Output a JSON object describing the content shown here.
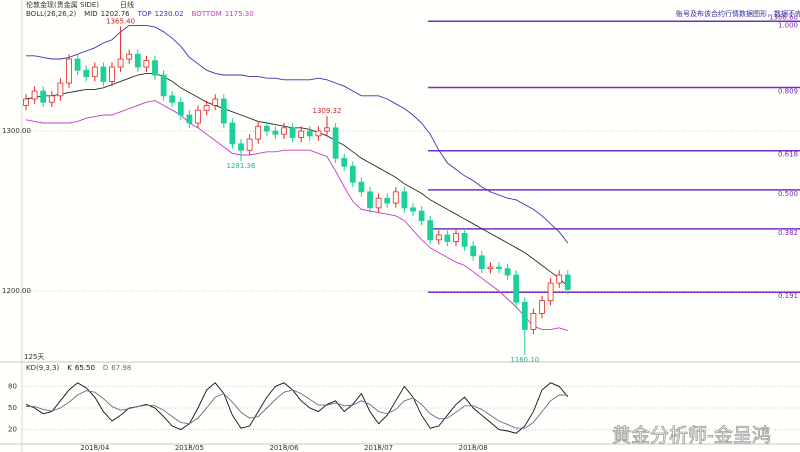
{
  "chart_data": [
    {
      "type": "candlestick",
      "title": "伦敦金现(贵金属 SIDE)",
      "period": "日线",
      "indicator": "BOLL(26,26,2)",
      "disclaimer": "账号及布该合约行情数据图形，数据不完整",
      "days_label": "125天",
      "watermark": "黄金分析师-金呈鸿",
      "categories": [
        null,
        null,
        null,
        null,
        null,
        null,
        null,
        null,
        "2018/04",
        null,
        null,
        null,
        null,
        null,
        null,
        null,
        null,
        null,
        null,
        "2018/05",
        null,
        null,
        null,
        null,
        null,
        null,
        null,
        null,
        null,
        null,
        "2018/06",
        null,
        null,
        null,
        null,
        null,
        null,
        null,
        null,
        null,
        null,
        "2018/07",
        null,
        null,
        null,
        null,
        null,
        null,
        null,
        null,
        null,
        null,
        "2018/08",
        null,
        null,
        null,
        null,
        null,
        null,
        null,
        null,
        null,
        null,
        null
      ],
      "candles": {
        "up_color": "#e02a2a",
        "down_color": "#1fcf9a",
        "open": [
          1316,
          1320,
          1325,
          1318,
          1322,
          1330,
          1345,
          1338,
          1334,
          1340,
          1331,
          1340,
          1345,
          1348,
          1340,
          1344,
          1335,
          1322,
          1318,
          1310,
          1305,
          1313,
          1316,
          1320,
          1305,
          1292,
          1288,
          1295,
          1303,
          1300,
          1298,
          1302,
          1296,
          1300,
          1297,
          1300,
          1302,
          1283,
          1278,
          1268,
          1262,
          1252,
          1258,
          1255,
          1262,
          1252,
          1250,
          1244,
          1232,
          1235,
          1231,
          1236,
          1228,
          1222,
          1214,
          1215,
          1214,
          1210,
          1193,
          1176,
          1186,
          1194,
          1205,
          1210
        ],
        "high": [
          1323,
          1328,
          1328,
          1325,
          1333,
          1348,
          1348,
          1341,
          1343,
          1343,
          1343,
          1365.4,
          1351,
          1351,
          1347,
          1347,
          1338,
          1325,
          1321,
          1313,
          1316,
          1319,
          1323,
          1323,
          1308,
          1295,
          1298,
          1306,
          1306,
          1303,
          1305,
          1305,
          1303,
          1303,
          1303,
          1309.32,
          1305,
          1286,
          1281,
          1271,
          1265,
          1261,
          1261,
          1265,
          1265,
          1255,
          1253,
          1247,
          1238,
          1238,
          1239,
          1239,
          1231,
          1225,
          1218,
          1218,
          1217,
          1213,
          1196,
          1189,
          1197,
          1208,
          1213,
          1213
        ],
        "low": [
          1313,
          1317,
          1315,
          1315,
          1319,
          1327,
          1335,
          1331,
          1331,
          1328,
          1328,
          1337,
          1342,
          1337,
          1337,
          1332,
          1319,
          1315,
          1307,
          1302,
          1302,
          1310,
          1313,
          1302,
          1289,
          1281.36,
          1285,
          1292,
          1297,
          1295,
          1295,
          1293,
          1293,
          1294,
          1294,
          1297,
          1280,
          1275,
          1265,
          1259,
          1249,
          1249,
          1252,
          1252,
          1249,
          1247,
          1241,
          1229,
          1229,
          1228,
          1228,
          1225,
          1219,
          1211,
          1211,
          1211,
          1207,
          1190,
          1160.1,
          1173,
          1183,
          1191,
          1202,
          1198
        ],
        "close": [
          1320,
          1325,
          1318,
          1322,
          1330,
          1345,
          1338,
          1334,
          1340,
          1331,
          1340,
          1345,
          1348,
          1340,
          1344,
          1335,
          1322,
          1318,
          1310,
          1305,
          1313,
          1316,
          1320,
          1305,
          1292,
          1288,
          1295,
          1303,
          1300,
          1298,
          1302,
          1296,
          1300,
          1297,
          1300,
          1302,
          1283,
          1278,
          1268,
          1262,
          1252,
          1258,
          1255,
          1262,
          1252,
          1250,
          1244,
          1232,
          1235,
          1231,
          1236,
          1228,
          1222,
          1214,
          1215,
          1214,
          1210,
          1193,
          1176,
          1186,
          1194,
          1205,
          1210,
          1201
        ]
      },
      "series": [
        {
          "name": "MID",
          "color": "#2b2b2b",
          "last_value": 1202.76,
          "values": [
            1320,
            1321,
            1322,
            1322,
            1323,
            1324,
            1325,
            1326,
            1326,
            1327,
            1329,
            1331,
            1333,
            1335,
            1336,
            1336,
            1334,
            1331,
            1327,
            1324,
            1321,
            1318,
            1316,
            1314,
            1312,
            1310,
            1308,
            1306,
            1305,
            1304,
            1303,
            1302,
            1302,
            1301,
            1299,
            1297,
            1294,
            1291,
            1287,
            1283,
            1280,
            1277,
            1274,
            1271,
            1267,
            1264,
            1261,
            1257,
            1254,
            1251,
            1248,
            1245,
            1242,
            1239,
            1236,
            1233,
            1230,
            1227,
            1224,
            1220,
            1216,
            1212,
            1208,
            1202.76
          ]
        },
        {
          "name": "TOP",
          "color": "#3535b8",
          "last_value": 1230.02,
          "values": [
            1347,
            1347,
            1346,
            1345,
            1345,
            1346,
            1348,
            1350,
            1352,
            1355,
            1357,
            1362,
            1366,
            1366,
            1366,
            1365,
            1362,
            1358,
            1353,
            1346,
            1342,
            1338,
            1336,
            1335,
            1335,
            1335,
            1334,
            1334,
            1333,
            1333,
            1332,
            1332,
            1332,
            1332,
            1333,
            1332,
            1330,
            1328,
            1325,
            1322,
            1322,
            1322,
            1320,
            1317,
            1314,
            1310,
            1305,
            1298,
            1288,
            1280,
            1276,
            1272,
            1269,
            1265,
            1262,
            1260,
            1258,
            1257,
            1254,
            1251,
            1247,
            1242,
            1237,
            1230.02
          ]
        },
        {
          "name": "BOTTOM",
          "color": "#c43cc4",
          "last_value": {
            "value": 1175.3,
            "label": "1175.30"
          },
          "values": [
            1307,
            1306,
            1305,
            1305,
            1305,
            1305,
            1306,
            1308,
            1309,
            1310,
            1310,
            1312,
            1314,
            1316,
            1318,
            1319,
            1316,
            1313,
            1310,
            1305,
            1302,
            1298,
            1294,
            1290,
            1286,
            1285,
            1285,
            1286,
            1287,
            1287,
            1288,
            1288,
            1288,
            1288,
            1286,
            1284,
            1275,
            1265,
            1256,
            1251,
            1250,
            1249,
            1248,
            1247,
            1244,
            1238,
            1232,
            1227,
            1224,
            1221,
            1218,
            1216,
            1212,
            1208,
            1204,
            1200,
            1195,
            1190,
            1184,
            1178,
            1176,
            1176,
            1177,
            1175.3
          ]
        }
      ],
      "annotations": [
        {
          "value": 1365.4,
          "label": "1365.40",
          "color": "#d02020"
        },
        {
          "value": 1309.32,
          "label": "1309.32",
          "color": "#d02020"
        },
        {
          "value": 1281.36,
          "label": "1281.36",
          "color": "#22b39a"
        },
        {
          "value": 1160.1,
          "label": "1160.10",
          "color": "#22b39a"
        }
      ],
      "fib_color": "#7a2cc0",
      "fib_levels": [
        {
          "value": 1368.6,
          "label": "1368.60",
          "ratio": {
            "value": 1,
            "label": "1.000"
          }
        },
        {
          "value": 1327.24,
          "ratio": 0.809
        },
        {
          "value": 1287.69,
          "ratio": 0.618
        },
        {
          "value": 1263.26,
          "ratio": {
            "value": 0.5,
            "label": "0.500"
          }
        },
        {
          "value": 1238.82,
          "ratio": 0.382
        },
        {
          "value": 1199.27,
          "ratio": 0.191
        }
      ],
      "ylim": [
        1156.9,
        1374.4
      ],
      "yticks": [
        {
          "value": 1300,
          "label": "1300.00"
        },
        {
          "value": 1200,
          "label": "1200.00"
        }
      ],
      "grid": true
    },
    {
      "type": "line",
      "title": "KD(9,3,3)",
      "series": [
        {
          "name": "K",
          "color": "#111111",
          "last_value": {
            "value": 65.5,
            "label": "65.50"
          },
          "values": [
            55,
            50,
            42,
            45,
            60,
            75,
            85,
            78,
            65,
            45,
            32,
            40,
            50,
            52,
            55,
            50,
            38,
            25,
            20,
            28,
            50,
            75,
            85,
            70,
            40,
            22,
            25,
            45,
            65,
            80,
            85,
            75,
            60,
            50,
            45,
            55,
            60,
            45,
            55,
            70,
            45,
            28,
            40,
            60,
            80,
            65,
            40,
            22,
            25,
            40,
            55,
            65,
            50,
            40,
            30,
            20,
            18,
            15,
            25,
            45,
            75,
            85,
            80,
            65.5
          ]
        },
        {
          "name": "D",
          "color": "#6a6a8c",
          "last_value": 67.98,
          "values": [
            52,
            52,
            48,
            46,
            50,
            58,
            68,
            74,
            72,
            63,
            52,
            47,
            49,
            52,
            54,
            53,
            47,
            38,
            30,
            28,
            36,
            50,
            65,
            70,
            58,
            44,
            36,
            38,
            50,
            62,
            72,
            75,
            70,
            62,
            54,
            54,
            57,
            53,
            54,
            60,
            55,
            45,
            42,
            48,
            60,
            64,
            55,
            42,
            35,
            36,
            44,
            53,
            53,
            48,
            40,
            32,
            27,
            22,
            22,
            30,
            45,
            60,
            68,
            67.98
          ]
        }
      ],
      "ylim": [
        0,
        100
      ],
      "yticks": [
        80,
        50,
        20
      ],
      "grid": true
    }
  ]
}
